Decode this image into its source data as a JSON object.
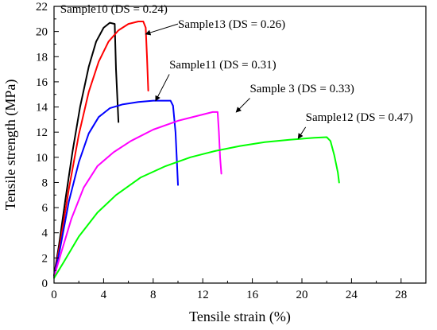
{
  "chart_data": {
    "type": "line",
    "xlabel": "Tensile strain (%)",
    "ylabel": "Tensile strength (MPa)",
    "xlim": [
      0,
      30
    ],
    "ylim": [
      0,
      22
    ],
    "xticks": [
      0,
      4,
      8,
      12,
      16,
      20,
      24,
      28
    ],
    "yticks": [
      0,
      2,
      4,
      6,
      8,
      10,
      12,
      14,
      16,
      18,
      20,
      22
    ],
    "grid": false,
    "series": [
      {
        "name": "Sample10 (DS = 0.24)",
        "color": "#000000",
        "points": [
          [
            0,
            0.6
          ],
          [
            0.4,
            3
          ],
          [
            0.9,
            6.5
          ],
          [
            1.5,
            10.5
          ],
          [
            2.1,
            14
          ],
          [
            2.8,
            17.2
          ],
          [
            3.4,
            19.2
          ],
          [
            4.0,
            20.3
          ],
          [
            4.5,
            20.7
          ],
          [
            4.9,
            20.6
          ],
          [
            5.0,
            17
          ],
          [
            5.2,
            12.8
          ]
        ]
      },
      {
        "name": "Sample13 (DS = 0.26)",
        "color": "#ff0000",
        "points": [
          [
            0,
            0.5
          ],
          [
            0.5,
            3.2
          ],
          [
            1.2,
            7.5
          ],
          [
            2.0,
            11.8
          ],
          [
            2.8,
            15.2
          ],
          [
            3.6,
            17.6
          ],
          [
            4.4,
            19.2
          ],
          [
            5.2,
            20.1
          ],
          [
            6.0,
            20.6
          ],
          [
            6.8,
            20.8
          ],
          [
            7.2,
            20.8
          ],
          [
            7.4,
            20.3
          ],
          [
            7.5,
            18
          ],
          [
            7.6,
            15.3
          ]
        ]
      },
      {
        "name": "Sample11 (DS = 0.31)",
        "color": "#0000ff",
        "points": [
          [
            0,
            0.5
          ],
          [
            0.5,
            2.8
          ],
          [
            1.2,
            6.5
          ],
          [
            2.0,
            9.6
          ],
          [
            2.8,
            11.9
          ],
          [
            3.6,
            13.2
          ],
          [
            4.5,
            13.9
          ],
          [
            5.5,
            14.2
          ],
          [
            6.8,
            14.4
          ],
          [
            8.0,
            14.5
          ],
          [
            9.4,
            14.5
          ],
          [
            9.6,
            14.1
          ],
          [
            9.8,
            12
          ],
          [
            9.9,
            10
          ],
          [
            10.0,
            7.8
          ]
        ]
      },
      {
        "name": "Sample 3 (DS = 0.33)",
        "color": "#ff00ff",
        "points": [
          [
            0,
            0.5
          ],
          [
            0.6,
            2.5
          ],
          [
            1.4,
            5.1
          ],
          [
            2.4,
            7.6
          ],
          [
            3.5,
            9.3
          ],
          [
            4.8,
            10.4
          ],
          [
            6.2,
            11.3
          ],
          [
            8.0,
            12.2
          ],
          [
            10.0,
            12.9
          ],
          [
            12.0,
            13.4
          ],
          [
            12.8,
            13.6
          ],
          [
            13.2,
            13.6
          ],
          [
            13.3,
            12
          ],
          [
            13.4,
            10
          ],
          [
            13.5,
            8.7
          ]
        ]
      },
      {
        "name": "Sample12 (DS = 0.47)",
        "color": "#00ff00",
        "points": [
          [
            0,
            0.4
          ],
          [
            0.8,
            1.7
          ],
          [
            2.0,
            3.7
          ],
          [
            3.5,
            5.6
          ],
          [
            5.0,
            7.0
          ],
          [
            7.0,
            8.4
          ],
          [
            9.0,
            9.3
          ],
          [
            11.0,
            10.0
          ],
          [
            13.0,
            10.5
          ],
          [
            15.0,
            10.9
          ],
          [
            17.0,
            11.2
          ],
          [
            19.0,
            11.4
          ],
          [
            21.0,
            11.55
          ],
          [
            22.0,
            11.6
          ],
          [
            22.3,
            11.3
          ],
          [
            22.6,
            10.2
          ],
          [
            22.9,
            8.8
          ],
          [
            23.0,
            8.0
          ]
        ]
      }
    ],
    "annotations": [
      {
        "text": "Sample10 (DS = 0.24)",
        "x": 0.5,
        "y": 21.8,
        "arrow": null
      },
      {
        "text": "Sample13 (DS = 0.26)",
        "x": 10.0,
        "y": 20.6,
        "arrow": [
          [
            10.0,
            20.6
          ],
          [
            7.4,
            19.8
          ]
        ]
      },
      {
        "text": "Sample11 (DS = 0.31)",
        "x": 9.3,
        "y": 17.4,
        "arrow": [
          [
            9.3,
            16.6
          ],
          [
            8.2,
            14.5
          ]
        ]
      },
      {
        "text": "Sample 3 (DS = 0.33)",
        "x": 15.8,
        "y": 15.5,
        "arrow": [
          [
            15.8,
            14.7
          ],
          [
            14.7,
            13.6
          ]
        ]
      },
      {
        "text": "Sample12 (DS = 0.47)",
        "x": 20.3,
        "y": 13.2,
        "arrow": [
          [
            20.3,
            12.4
          ],
          [
            19.7,
            11.5
          ]
        ]
      }
    ]
  }
}
